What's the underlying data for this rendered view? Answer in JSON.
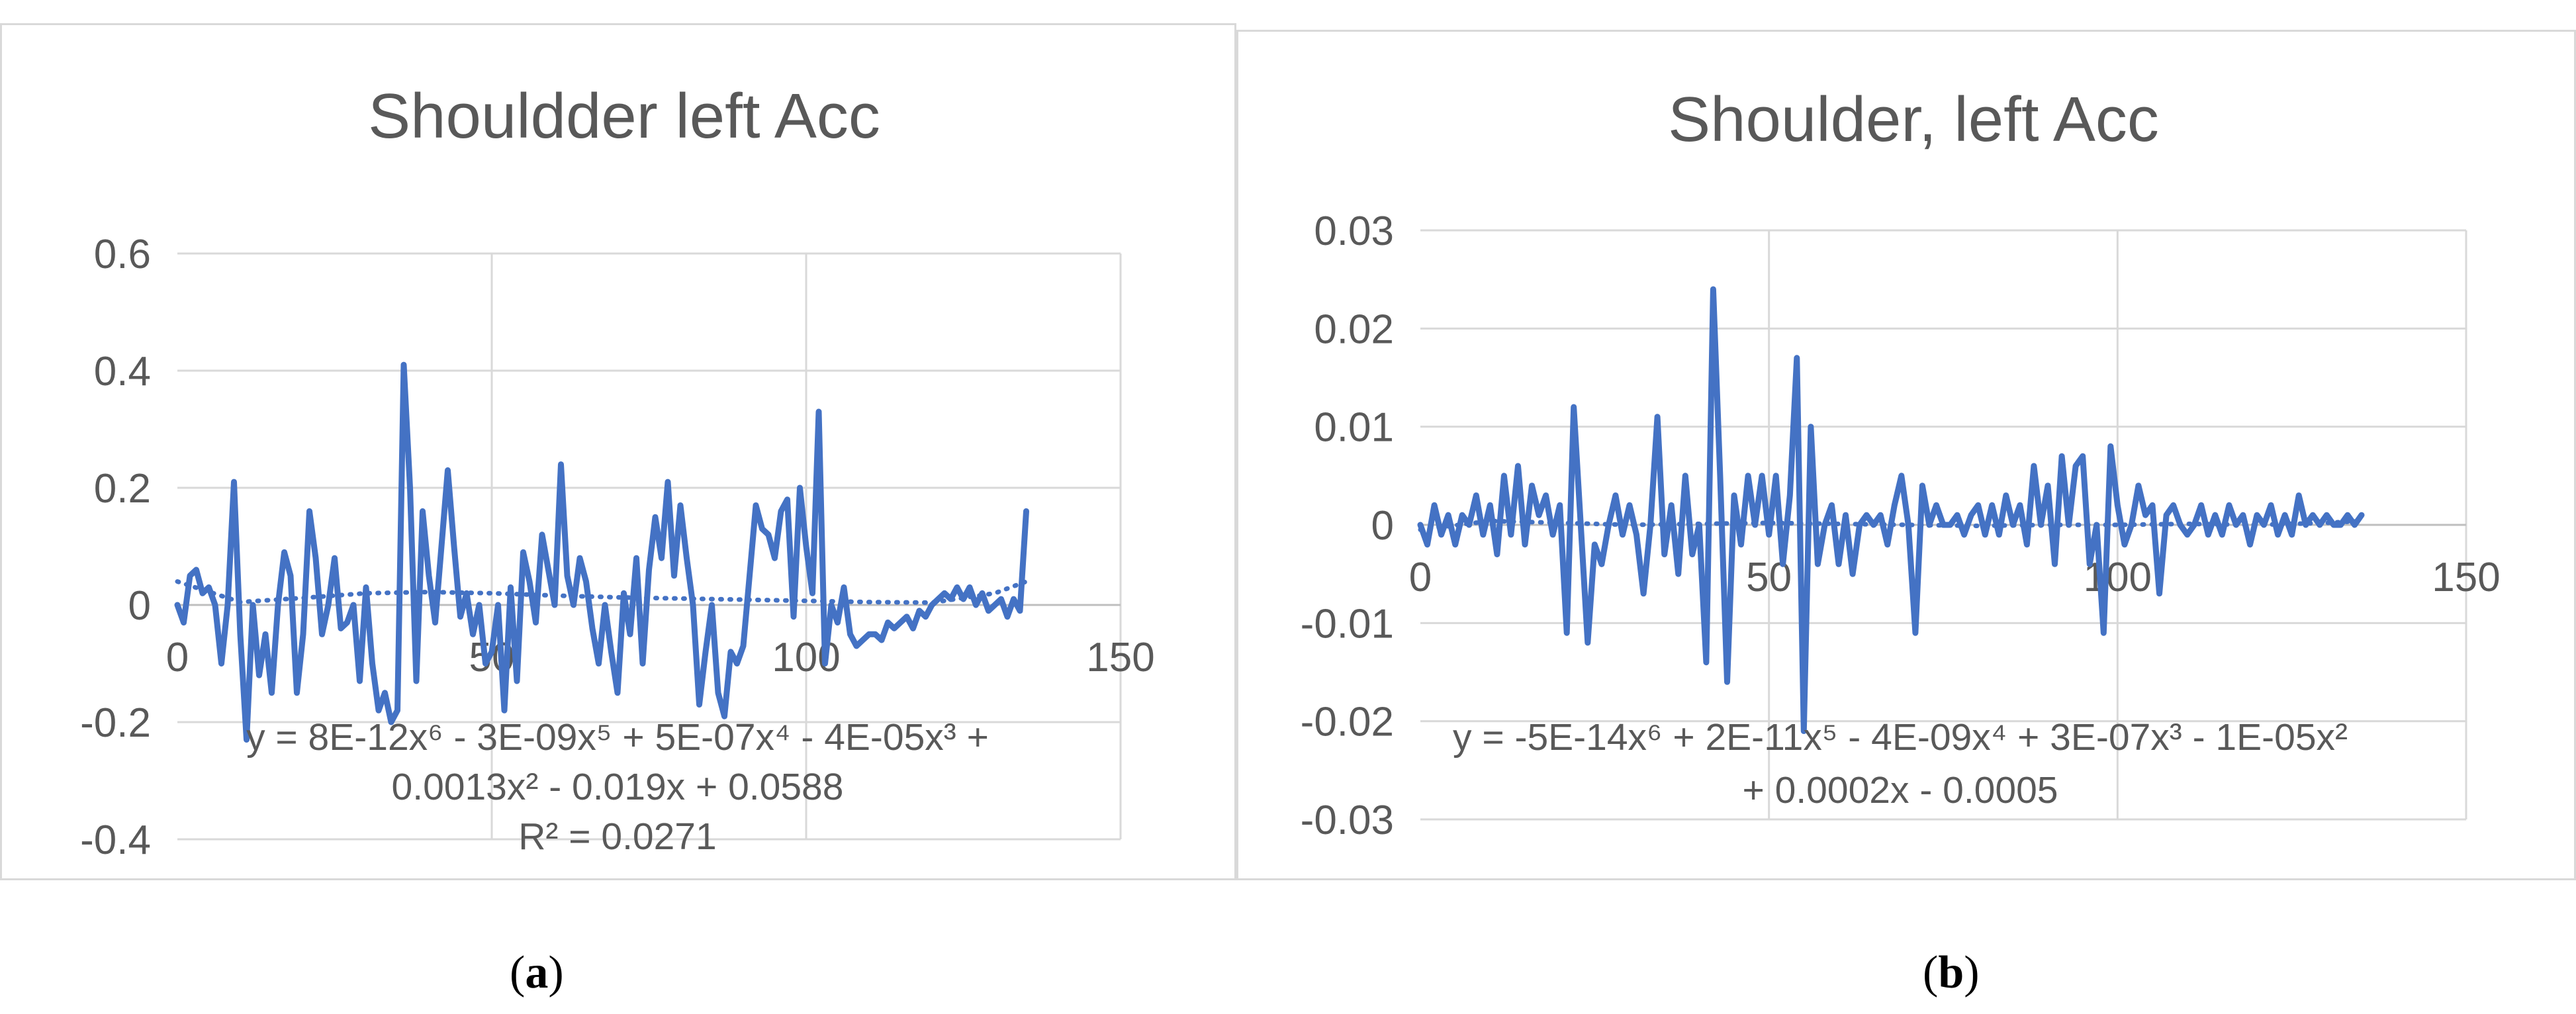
{
  "colors": {
    "series": "#4472c4",
    "grid": "#d9d9d9",
    "text": "#595959"
  },
  "captions": [
    {
      "open": "(",
      "letter": "a",
      "close": ")"
    },
    {
      "open": "(",
      "letter": "b",
      "close": ")"
    }
  ],
  "chart_data": [
    {
      "type": "line",
      "title": "Shouldder left  Acc",
      "xlim": [
        0,
        150
      ],
      "ylim": [
        -0.4,
        0.6
      ],
      "x_ticks": [
        0,
        50,
        100,
        150
      ],
      "x_tick_labels": [
        "0",
        "50",
        "100",
        "150"
      ],
      "y_ticks": [
        -0.4,
        -0.2,
        0,
        0.2,
        0.4,
        0.6
      ],
      "y_tick_labels": [
        "-0.4",
        "-0.2",
        "0",
        "0.2",
        "0.4",
        "0.6"
      ],
      "grid": true,
      "series": [
        {
          "style": "solid",
          "x": [
            0,
            1,
            2,
            3,
            4,
            5,
            6,
            7,
            8,
            9,
            10,
            11,
            12,
            13,
            14,
            15,
            16,
            17,
            18,
            19,
            20,
            21,
            22,
            23,
            24,
            25,
            26,
            27,
            28,
            29,
            30,
            31,
            32,
            33,
            34,
            35,
            36,
            37,
            38,
            39,
            40,
            41,
            42,
            43,
            44,
            45,
            46,
            47,
            48,
            49,
            50,
            51,
            52,
            53,
            54,
            55,
            56,
            57,
            58,
            59,
            60,
            61,
            62,
            63,
            64,
            65,
            66,
            67,
            68,
            69,
            70,
            71,
            72,
            73,
            74,
            75,
            76,
            77,
            78,
            79,
            80,
            81,
            82,
            83,
            84,
            85,
            86,
            87,
            88,
            89,
            90,
            91,
            92,
            93,
            94,
            95,
            96,
            97,
            98,
            99,
            100,
            101,
            102,
            103,
            104,
            105,
            106,
            107,
            108,
            109,
            110,
            111,
            112,
            113,
            114,
            115,
            116,
            117,
            118,
            119,
            120,
            121,
            122,
            123,
            124,
            125,
            126,
            127,
            128,
            129,
            130,
            131,
            132,
            133,
            134,
            135
          ],
          "y": [
            0,
            -0.03,
            0.05,
            0.06,
            0.02,
            0.03,
            0,
            -0.1,
            0,
            0.21,
            -0.05,
            -0.23,
            0,
            -0.12,
            -0.05,
            -0.15,
            0,
            0.09,
            0.05,
            -0.15,
            -0.05,
            0.16,
            0.08,
            -0.05,
            0,
            0.08,
            -0.04,
            -0.03,
            0,
            -0.13,
            0.03,
            -0.1,
            -0.18,
            -0.15,
            -0.2,
            -0.18,
            0.41,
            0.2,
            -0.13,
            0.16,
            0.05,
            -0.03,
            0.1,
            0.23,
            0.1,
            -0.02,
            0.02,
            -0.05,
            0,
            -0.1,
            -0.08,
            0,
            -0.18,
            0.03,
            -0.13,
            0.09,
            0.04,
            -0.03,
            0.12,
            0.06,
            0,
            0.24,
            0.05,
            0,
            0.08,
            0.04,
            -0.04,
            -0.1,
            0,
            -0.08,
            -0.15,
            0.02,
            -0.05,
            0.08,
            -0.1,
            0.06,
            0.15,
            0.08,
            0.21,
            0.05,
            0.17,
            0.08,
            0,
            -0.17,
            -0.08,
            0,
            -0.15,
            -0.19,
            -0.08,
            -0.1,
            -0.07,
            0.05,
            0.17,
            0.13,
            0.12,
            0.08,
            0.16,
            0.18,
            -0.02,
            0.2,
            0.1,
            0.02,
            0.33,
            -0.1,
            0,
            -0.03,
            0.03,
            -0.05,
            -0.07,
            -0.06,
            -0.05,
            -0.05,
            -0.06,
            -0.03,
            -0.04,
            -0.03,
            -0.02,
            -0.04,
            -0.01,
            -0.02,
            0,
            0.01,
            0.02,
            0.01,
            0.03,
            0.01,
            0.03,
            0,
            0.02,
            -0.01,
            0,
            0.01,
            -0.02,
            0.01,
            -0.01,
            0.16
          ]
        },
        {
          "style": "dotted",
          "x": [
            0,
            10,
            20,
            30,
            40,
            50,
            60,
            70,
            80,
            90,
            100,
            110,
            120,
            130,
            135
          ],
          "y": [
            0.04,
            0.005,
            0.012,
            0.02,
            0.022,
            0.02,
            0.016,
            0.013,
            0.011,
            0.009,
            0.007,
            0.005,
            0.004,
            0.02,
            0.04
          ]
        }
      ],
      "trendline_label": [
        "y = 8E-12x⁶ - 3E-09x⁵ + 5E-07x⁴ - 4E-05x³ +",
        "0.0013x² - 0.019x + 0.0588",
        "R² = 0.0271"
      ]
    },
    {
      "type": "line",
      "title": "Shoulder, left Acc",
      "xlim": [
        0,
        150
      ],
      "ylim": [
        -0.03,
        0.03
      ],
      "x_ticks": [
        0,
        50,
        100,
        150
      ],
      "x_tick_labels": [
        "0",
        "50",
        "100",
        "150"
      ],
      "y_ticks": [
        -0.03,
        -0.02,
        -0.01,
        0,
        0.01,
        0.02,
        0.03
      ],
      "y_tick_labels": [
        "-0.03",
        "-0.02",
        "-0.01",
        "0",
        "0.01",
        "0.02",
        "0.03"
      ],
      "grid": true,
      "series": [
        {
          "style": "solid",
          "x": [
            0,
            1,
            2,
            3,
            4,
            5,
            6,
            7,
            8,
            9,
            10,
            11,
            12,
            13,
            14,
            15,
            16,
            17,
            18,
            19,
            20,
            21,
            22,
            23,
            24,
            25,
            26,
            27,
            28,
            29,
            30,
            31,
            32,
            33,
            34,
            35,
            36,
            37,
            38,
            39,
            40,
            41,
            42,
            43,
            44,
            45,
            46,
            47,
            48,
            49,
            50,
            51,
            52,
            53,
            54,
            55,
            56,
            57,
            58,
            59,
            60,
            61,
            62,
            63,
            64,
            65,
            66,
            67,
            68,
            69,
            70,
            71,
            72,
            73,
            74,
            75,
            76,
            77,
            78,
            79,
            80,
            81,
            82,
            83,
            84,
            85,
            86,
            87,
            88,
            89,
            90,
            91,
            92,
            93,
            94,
            95,
            96,
            97,
            98,
            99,
            100,
            101,
            102,
            103,
            104,
            105,
            106,
            107,
            108,
            109,
            110,
            111,
            112,
            113,
            114,
            115,
            116,
            117,
            118,
            119,
            120,
            121,
            122,
            123,
            124,
            125,
            126,
            127,
            128,
            129,
            130,
            131,
            132,
            133,
            134,
            135
          ],
          "y": [
            0,
            -0.002,
            0.002,
            -0.001,
            0.001,
            -0.002,
            0.001,
            0,
            0.003,
            -0.001,
            0.002,
            -0.003,
            0.005,
            -0.001,
            0.006,
            -0.002,
            0.004,
            0.001,
            0.003,
            -0.001,
            0.002,
            -0.011,
            0.012,
            0,
            -0.012,
            -0.002,
            -0.004,
            0,
            0.003,
            -0.001,
            0.002,
            -0.001,
            -0.007,
            0,
            0.011,
            -0.003,
            0.002,
            -0.005,
            0.005,
            -0.003,
            0,
            -0.014,
            0.024,
            0.005,
            -0.016,
            0.003,
            -0.002,
            0.005,
            0,
            0.005,
            -0.001,
            0.005,
            -0.004,
            0.003,
            0.017,
            -0.021,
            0.01,
            -0.004,
            0,
            0.002,
            -0.004,
            0.001,
            -0.005,
            0,
            0.001,
            0,
            0.001,
            -0.002,
            0.002,
            0.005,
            0,
            -0.011,
            0.004,
            0,
            0.002,
            0,
            0,
            0.001,
            -0.001,
            0.001,
            0.002,
            -0.001,
            0.002,
            -0.001,
            0.003,
            0,
            0.002,
            -0.002,
            0.006,
            0,
            0.004,
            -0.004,
            0.007,
            0,
            0.006,
            0.007,
            -0.004,
            0,
            -0.011,
            0.008,
            0.002,
            -0.002,
            0,
            0.004,
            0.001,
            0.002,
            -0.007,
            0.001,
            0.002,
            0,
            -0.001,
            0,
            0.002,
            -0.001,
            0.001,
            -0.001,
            0.002,
            0,
            0.001,
            -0.002,
            0.001,
            0,
            0.002,
            -0.001,
            0.001,
            -0.001,
            0.003,
            0,
            0.001,
            0,
            0.001,
            0,
            0,
            0.001,
            0,
            0.001
          ]
        },
        {
          "style": "dotted",
          "x": [
            0,
            10,
            20,
            30,
            40,
            50,
            60,
            70,
            80,
            90,
            100,
            110,
            120,
            130,
            135
          ],
          "y": [
            -0.0005,
            0.0004,
            0.0002,
            0,
            0.0001,
            0.0002,
            0.0001,
            0,
            -0.0001,
            0,
            0,
            0.0001,
            0,
            0.0002,
            0.0004
          ]
        }
      ],
      "trendline_label": [
        "y = -5E-14x⁶ + 2E-11x⁵ - 4E-09x⁴ + 3E-07x³ - 1E-05x²",
        "+ 0.0002x - 0.0005"
      ]
    }
  ]
}
